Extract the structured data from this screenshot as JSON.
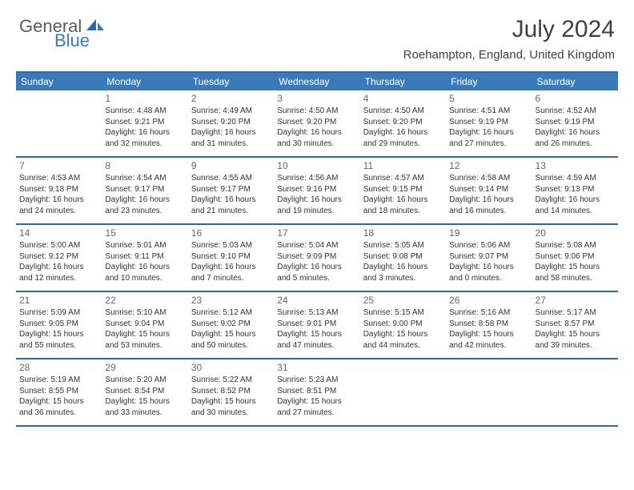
{
  "logo": {
    "general": "General",
    "blue": "Blue"
  },
  "title": "July 2024",
  "location": "Roehampton, England, United Kingdom",
  "colors": {
    "header_bg": "#3a7ab8",
    "border": "#2a6aa8",
    "text_dark": "#404040",
    "text_body": "#333333",
    "day_number": "#666666"
  },
  "weekdays": [
    "Sunday",
    "Monday",
    "Tuesday",
    "Wednesday",
    "Thursday",
    "Friday",
    "Saturday"
  ],
  "weeks": [
    [
      {
        "n": "",
        "sunrise": "",
        "sunset": "",
        "daylight1": "",
        "daylight2": ""
      },
      {
        "n": "1",
        "sunrise": "Sunrise: 4:48 AM",
        "sunset": "Sunset: 9:21 PM",
        "daylight1": "Daylight: 16 hours",
        "daylight2": "and 32 minutes."
      },
      {
        "n": "2",
        "sunrise": "Sunrise: 4:49 AM",
        "sunset": "Sunset: 9:20 PM",
        "daylight1": "Daylight: 16 hours",
        "daylight2": "and 31 minutes."
      },
      {
        "n": "3",
        "sunrise": "Sunrise: 4:50 AM",
        "sunset": "Sunset: 9:20 PM",
        "daylight1": "Daylight: 16 hours",
        "daylight2": "and 30 minutes."
      },
      {
        "n": "4",
        "sunrise": "Sunrise: 4:50 AM",
        "sunset": "Sunset: 9:20 PM",
        "daylight1": "Daylight: 16 hours",
        "daylight2": "and 29 minutes."
      },
      {
        "n": "5",
        "sunrise": "Sunrise: 4:51 AM",
        "sunset": "Sunset: 9:19 PM",
        "daylight1": "Daylight: 16 hours",
        "daylight2": "and 27 minutes."
      },
      {
        "n": "6",
        "sunrise": "Sunrise: 4:52 AM",
        "sunset": "Sunset: 9:19 PM",
        "daylight1": "Daylight: 16 hours",
        "daylight2": "and 26 minutes."
      }
    ],
    [
      {
        "n": "7",
        "sunrise": "Sunrise: 4:53 AM",
        "sunset": "Sunset: 9:18 PM",
        "daylight1": "Daylight: 16 hours",
        "daylight2": "and 24 minutes."
      },
      {
        "n": "8",
        "sunrise": "Sunrise: 4:54 AM",
        "sunset": "Sunset: 9:17 PM",
        "daylight1": "Daylight: 16 hours",
        "daylight2": "and 23 minutes."
      },
      {
        "n": "9",
        "sunrise": "Sunrise: 4:55 AM",
        "sunset": "Sunset: 9:17 PM",
        "daylight1": "Daylight: 16 hours",
        "daylight2": "and 21 minutes."
      },
      {
        "n": "10",
        "sunrise": "Sunrise: 4:56 AM",
        "sunset": "Sunset: 9:16 PM",
        "daylight1": "Daylight: 16 hours",
        "daylight2": "and 19 minutes."
      },
      {
        "n": "11",
        "sunrise": "Sunrise: 4:57 AM",
        "sunset": "Sunset: 9:15 PM",
        "daylight1": "Daylight: 16 hours",
        "daylight2": "and 18 minutes."
      },
      {
        "n": "12",
        "sunrise": "Sunrise: 4:58 AM",
        "sunset": "Sunset: 9:14 PM",
        "daylight1": "Daylight: 16 hours",
        "daylight2": "and 16 minutes."
      },
      {
        "n": "13",
        "sunrise": "Sunrise: 4:59 AM",
        "sunset": "Sunset: 9:13 PM",
        "daylight1": "Daylight: 16 hours",
        "daylight2": "and 14 minutes."
      }
    ],
    [
      {
        "n": "14",
        "sunrise": "Sunrise: 5:00 AM",
        "sunset": "Sunset: 9:12 PM",
        "daylight1": "Daylight: 16 hours",
        "daylight2": "and 12 minutes."
      },
      {
        "n": "15",
        "sunrise": "Sunrise: 5:01 AM",
        "sunset": "Sunset: 9:11 PM",
        "daylight1": "Daylight: 16 hours",
        "daylight2": "and 10 minutes."
      },
      {
        "n": "16",
        "sunrise": "Sunrise: 5:03 AM",
        "sunset": "Sunset: 9:10 PM",
        "daylight1": "Daylight: 16 hours",
        "daylight2": "and 7 minutes."
      },
      {
        "n": "17",
        "sunrise": "Sunrise: 5:04 AM",
        "sunset": "Sunset: 9:09 PM",
        "daylight1": "Daylight: 16 hours",
        "daylight2": "and 5 minutes."
      },
      {
        "n": "18",
        "sunrise": "Sunrise: 5:05 AM",
        "sunset": "Sunset: 9:08 PM",
        "daylight1": "Daylight: 16 hours",
        "daylight2": "and 3 minutes."
      },
      {
        "n": "19",
        "sunrise": "Sunrise: 5:06 AM",
        "sunset": "Sunset: 9:07 PM",
        "daylight1": "Daylight: 16 hours",
        "daylight2": "and 0 minutes."
      },
      {
        "n": "20",
        "sunrise": "Sunrise: 5:08 AM",
        "sunset": "Sunset: 9:06 PM",
        "daylight1": "Daylight: 15 hours",
        "daylight2": "and 58 minutes."
      }
    ],
    [
      {
        "n": "21",
        "sunrise": "Sunrise: 5:09 AM",
        "sunset": "Sunset: 9:05 PM",
        "daylight1": "Daylight: 15 hours",
        "daylight2": "and 55 minutes."
      },
      {
        "n": "22",
        "sunrise": "Sunrise: 5:10 AM",
        "sunset": "Sunset: 9:04 PM",
        "daylight1": "Daylight: 15 hours",
        "daylight2": "and 53 minutes."
      },
      {
        "n": "23",
        "sunrise": "Sunrise: 5:12 AM",
        "sunset": "Sunset: 9:02 PM",
        "daylight1": "Daylight: 15 hours",
        "daylight2": "and 50 minutes."
      },
      {
        "n": "24",
        "sunrise": "Sunrise: 5:13 AM",
        "sunset": "Sunset: 9:01 PM",
        "daylight1": "Daylight: 15 hours",
        "daylight2": "and 47 minutes."
      },
      {
        "n": "25",
        "sunrise": "Sunrise: 5:15 AM",
        "sunset": "Sunset: 9:00 PM",
        "daylight1": "Daylight: 15 hours",
        "daylight2": "and 44 minutes."
      },
      {
        "n": "26",
        "sunrise": "Sunrise: 5:16 AM",
        "sunset": "Sunset: 8:58 PM",
        "daylight1": "Daylight: 15 hours",
        "daylight2": "and 42 minutes."
      },
      {
        "n": "27",
        "sunrise": "Sunrise: 5:17 AM",
        "sunset": "Sunset: 8:57 PM",
        "daylight1": "Daylight: 15 hours",
        "daylight2": "and 39 minutes."
      }
    ],
    [
      {
        "n": "28",
        "sunrise": "Sunrise: 5:19 AM",
        "sunset": "Sunset: 8:55 PM",
        "daylight1": "Daylight: 15 hours",
        "daylight2": "and 36 minutes."
      },
      {
        "n": "29",
        "sunrise": "Sunrise: 5:20 AM",
        "sunset": "Sunset: 8:54 PM",
        "daylight1": "Daylight: 15 hours",
        "daylight2": "and 33 minutes."
      },
      {
        "n": "30",
        "sunrise": "Sunrise: 5:22 AM",
        "sunset": "Sunset: 8:52 PM",
        "daylight1": "Daylight: 15 hours",
        "daylight2": "and 30 minutes."
      },
      {
        "n": "31",
        "sunrise": "Sunrise: 5:23 AM",
        "sunset": "Sunset: 8:51 PM",
        "daylight1": "Daylight: 15 hours",
        "daylight2": "and 27 minutes."
      },
      {
        "n": "",
        "sunrise": "",
        "sunset": "",
        "daylight1": "",
        "daylight2": ""
      },
      {
        "n": "",
        "sunrise": "",
        "sunset": "",
        "daylight1": "",
        "daylight2": ""
      },
      {
        "n": "",
        "sunrise": "",
        "sunset": "",
        "daylight1": "",
        "daylight2": ""
      }
    ]
  ]
}
